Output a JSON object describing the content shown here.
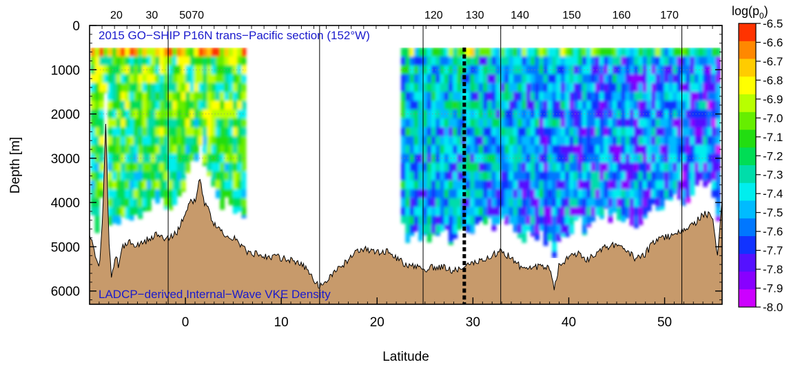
{
  "chart_data": {
    "type": "heatmap",
    "title": "2015 GO−SHIP P16N trans−Pacific section (152°W)",
    "annotation": "LADCP−derived Internal−Wave VKE Density",
    "xlabel": "Latitude",
    "ylabel": "Depth [m]",
    "xlim": [
      -10,
      56
    ],
    "ylim": [
      0,
      6300
    ],
    "y_inverted": true,
    "x_ticks": [
      0,
      10,
      20,
      30,
      40,
      50
    ],
    "y_ticks": [
      0,
      1000,
      2000,
      3000,
      4000,
      5000,
      6000
    ],
    "top_axis": {
      "labels": [
        "20",
        "30",
        "50",
        "70",
        "120",
        "130",
        "140",
        "150",
        "160",
        "170"
      ],
      "label_latitudes": [
        -7.2,
        -3.5,
        0.0,
        1.3,
        25.9,
        30.2,
        34.9,
        40.3,
        45.5,
        50.5
      ]
    },
    "colorbar": {
      "title": "log(p",
      "title_subscript": "0",
      "title_suffix": ")",
      "levels": [
        "-6.5",
        "-6.6",
        "-6.7",
        "-6.8",
        "-6.9",
        "-7.0",
        "-7.1",
        "-7.2",
        "-7.3",
        "-7.4",
        "-7.5",
        "-7.6",
        "-7.7",
        "-7.8",
        "-7.9",
        "-8.0"
      ],
      "colors": [
        "#ff3300",
        "#ff8800",
        "#ffcc00",
        "#ffff00",
        "#b8ff00",
        "#66ee00",
        "#22dd11",
        "#00dd55",
        "#00ddaa",
        "#00eeee",
        "#00bbff",
        "#0077ff",
        "#1133ff",
        "#5511ff",
        "#8800ff",
        "#cc00ff"
      ]
    },
    "station_latitudes": [
      -1.8,
      14.0,
      24.8,
      32.9,
      51.8
    ],
    "highlight_latitude": 29.1,
    "data_segments": [
      {
        "lat_start": -9.9,
        "lat_end": 6.3,
        "depth_top": 500
      },
      {
        "lat_start": 22.5,
        "lat_end": 55.8,
        "depth_top": 500
      }
    ],
    "bathymetry": {
      "latitude": [
        -10,
        -9.5,
        -9,
        -8.6,
        -8.3,
        -8,
        -7.7,
        -7.3,
        -7,
        -6.5,
        -6,
        -5,
        -4,
        -3,
        -2,
        -1,
        0,
        0.5,
        1,
        1.5,
        2,
        2.5,
        3,
        4,
        5,
        6,
        7,
        8,
        10,
        12,
        13,
        14,
        14.5,
        15,
        16,
        17,
        18,
        19,
        20,
        21,
        22,
        23,
        24,
        25,
        26,
        27,
        28,
        29,
        30,
        31,
        32,
        33,
        34,
        35,
        36,
        37,
        38,
        38.5,
        39,
        40,
        41,
        42,
        43,
        44,
        45,
        46,
        47,
        48,
        49,
        50,
        51,
        52,
        53,
        54,
        55,
        55.5,
        56
      ],
      "depth": [
        4700,
        5100,
        5500,
        4200,
        2100,
        4900,
        5700,
        5200,
        5400,
        5000,
        4900,
        4950,
        4850,
        4700,
        4850,
        4700,
        4300,
        3900,
        4000,
        3400,
        4050,
        4200,
        4500,
        4700,
        4800,
        5050,
        5150,
        5200,
        5250,
        5350,
        5600,
        5900,
        5800,
        5700,
        5500,
        5300,
        5100,
        5050,
        5150,
        5100,
        5250,
        5400,
        5450,
        5500,
        5450,
        5450,
        5550,
        5450,
        5350,
        5300,
        5200,
        5100,
        5250,
        5450,
        5500,
        5450,
        5500,
        5950,
        5400,
        5250,
        5150,
        5300,
        5100,
        5000,
        4950,
        5050,
        5300,
        5150,
        4850,
        4800,
        4700,
        4600,
        4500,
        4250,
        4300,
        5300,
        4000
      ]
    },
    "field_seed": 152,
    "note_color_range": [
      -8.0,
      -6.5
    ]
  }
}
